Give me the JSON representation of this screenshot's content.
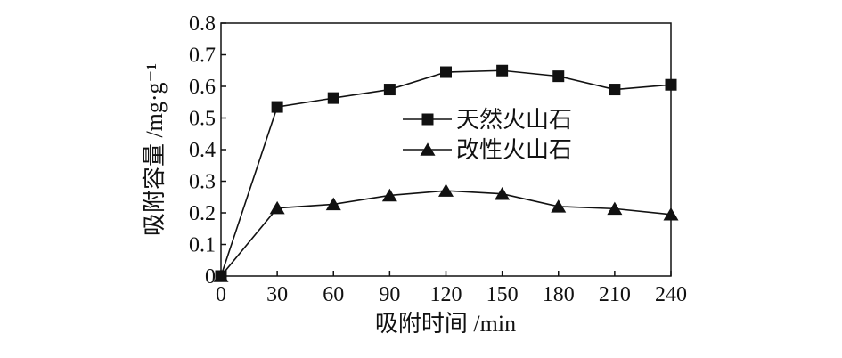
{
  "chart_data": {
    "type": "line",
    "xlabel": "吸附时间 /min",
    "ylabel": "吸附容量 /mg·g⁻¹",
    "xlim": [
      0,
      240
    ],
    "ylim": [
      0,
      0.8
    ],
    "x_ticks": [
      "0",
      "30",
      "60",
      "90",
      "120",
      "150",
      "180",
      "210",
      "240"
    ],
    "y_ticks": [
      "0",
      "0.1",
      "0.2",
      "0.3",
      "0.4",
      "0.5",
      "0.6",
      "0.7",
      "0.8"
    ],
    "grid": false,
    "legend_position": "center-right",
    "x": [
      0,
      30,
      60,
      90,
      120,
      150,
      180,
      210,
      240
    ],
    "series": [
      {
        "name": "天然火山石",
        "marker": "square",
        "values": [
          0,
          0.535,
          0.563,
          0.59,
          0.645,
          0.65,
          0.632,
          0.59,
          0.605
        ]
      },
      {
        "name": "改性火山石",
        "marker": "triangle",
        "values": [
          0,
          0.215,
          0.227,
          0.255,
          0.27,
          0.26,
          0.22,
          0.213,
          0.195
        ]
      }
    ]
  }
}
